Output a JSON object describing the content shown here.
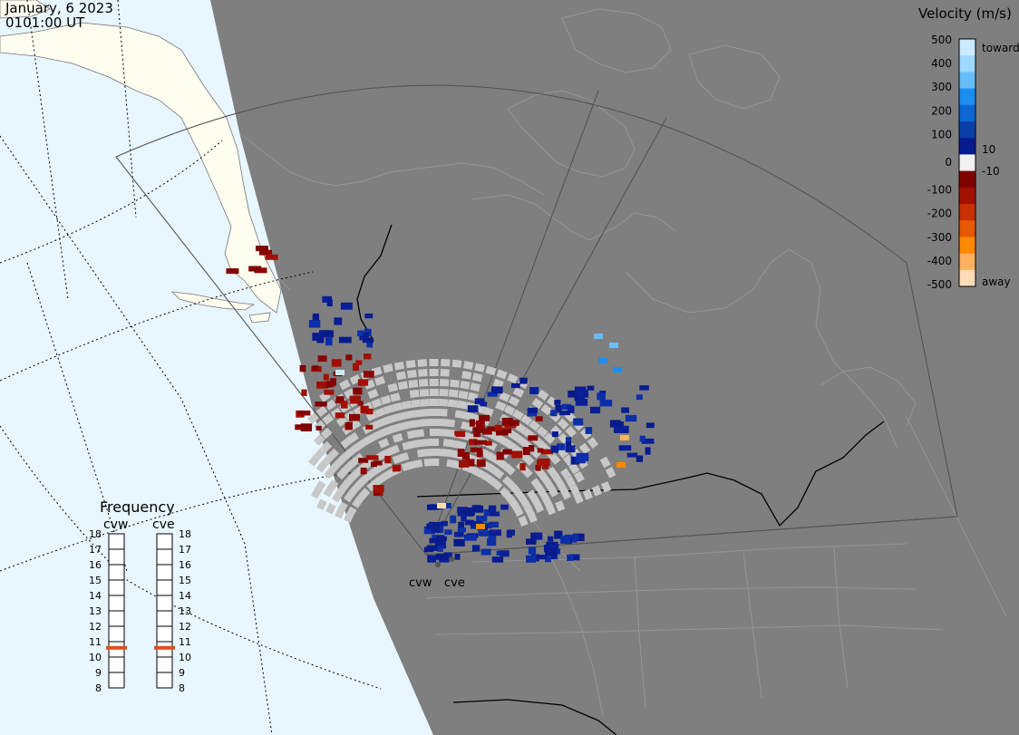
{
  "header": {
    "date": "January, 6 2023",
    "time": "0101:00 UT"
  },
  "colors": {
    "ocean": "#e8f6ff",
    "land_day": "#fffdf0",
    "night": "#7f7f7f",
    "fov_line": "#555555",
    "ground_scatter": "#c8c8c8",
    "freq_marker": "#e0501a"
  },
  "velocity_scale": {
    "title": "Velocity (m/s)",
    "ticks": [
      "500",
      "400",
      "300",
      "200",
      "100",
      "10",
      "0",
      "-10",
      "-100",
      "-200",
      "-300",
      "-400",
      "-500"
    ],
    "toward_label": "toward",
    "away_label": "away",
    "bands": [
      "#cbe9ff",
      "#9fd8ff",
      "#67bdf8",
      "#1c8ef0",
      "#0c66d4",
      "#0a3fa8",
      "#081b8c",
      "#f0f0f0",
      "#800000",
      "#a41000",
      "#c83000",
      "#e85800",
      "#ff8800",
      "#ffb060",
      "#ffdcb8"
    ]
  },
  "frequency_panel": {
    "title": "Frequency",
    "radars": [
      {
        "name": "cvw",
        "frequency_mhz": 10.6
      },
      {
        "name": "cve",
        "frequency_mhz": 10.6
      }
    ],
    "ticks": [
      "18",
      "17",
      "16",
      "15",
      "14",
      "13",
      "12",
      "11",
      "10",
      "9",
      "8"
    ]
  },
  "radar_sites": [
    {
      "name": "cvw"
    },
    {
      "name": "cve"
    }
  ]
}
